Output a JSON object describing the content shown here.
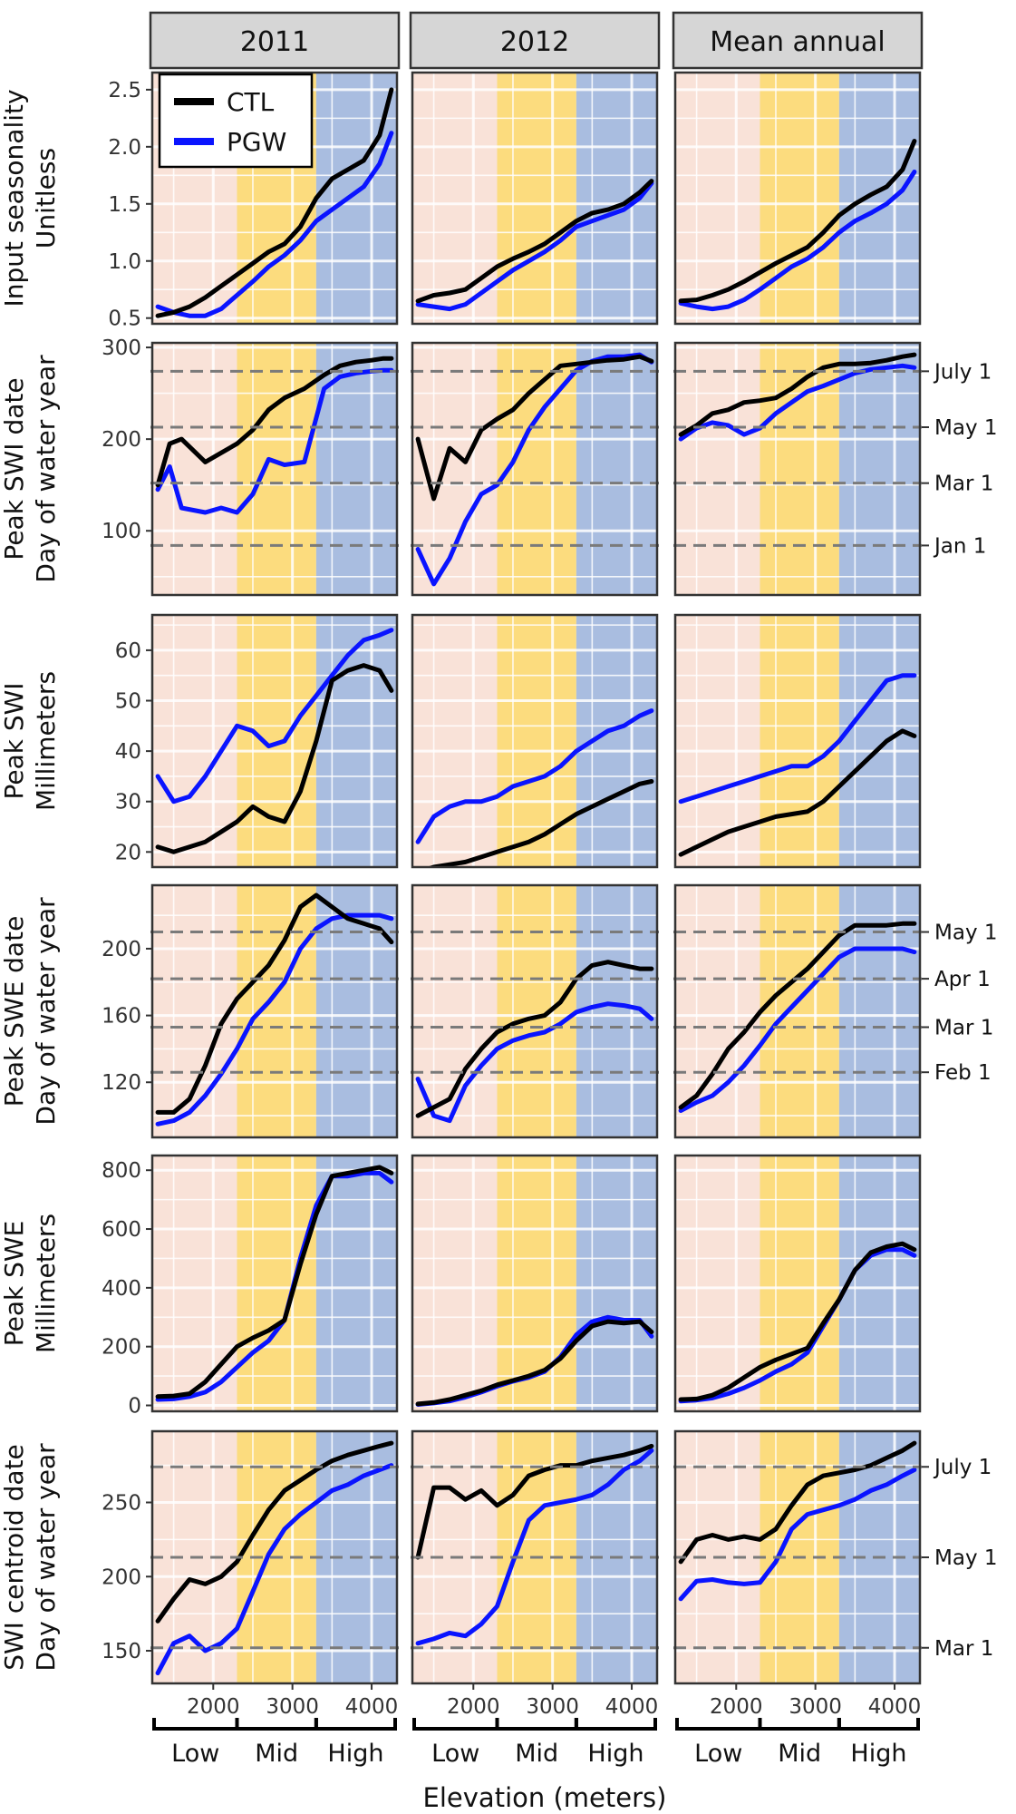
{
  "chart_data": {
    "type": "line",
    "columns": [
      "2011",
      "2012",
      "Mean annual"
    ],
    "xlabel": "Elevation (meters)",
    "x_ticks": [
      2000,
      3000,
      4000
    ],
    "x_range": [
      1230,
      4320
    ],
    "elevation_bands": [
      {
        "label": "Low",
        "from": 1230,
        "to": 2300,
        "color": "#f9e2d8"
      },
      {
        "label": "Mid",
        "from": 2300,
        "to": 3300,
        "color": "#fcdc7e"
      },
      {
        "label": "High",
        "from": 3300,
        "to": 4320,
        "color": "#a9bde0"
      }
    ],
    "legend": [
      {
        "name": "CTL",
        "color": "#000000"
      },
      {
        "name": "PGW",
        "color": "#0a14ff"
      }
    ],
    "x": [
      1300,
      1500,
      1700,
      1900,
      2100,
      2300,
      2500,
      2700,
      2900,
      3100,
      3300,
      3500,
      3700,
      3900,
      4100,
      4250
    ],
    "rows": [
      {
        "title": "Input seasonality",
        "ylabel": "Unitless",
        "ylim": [
          0.45,
          2.65
        ],
        "yticks": [
          0.5,
          1.0,
          1.5,
          2.0,
          2.5
        ],
        "ytick_labels": [
          "0.5",
          "1.0",
          "1.5",
          "2.0",
          "2.5"
        ],
        "ref_lines": [],
        "panels": [
          {
            "CTL": [
              0.52,
              0.55,
              0.6,
              0.68,
              0.78,
              0.88,
              0.98,
              1.08,
              1.15,
              1.3,
              1.55,
              1.72,
              1.8,
              1.88,
              2.1,
              2.5
            ],
            "PGW": [
              0.6,
              0.55,
              0.52,
              0.52,
              0.58,
              0.7,
              0.82,
              0.95,
              1.05,
              1.18,
              1.35,
              1.45,
              1.55,
              1.65,
              1.85,
              2.12
            ]
          },
          {
            "CTL": [
              0.65,
              0.7,
              0.72,
              0.75,
              0.85,
              0.95,
              1.02,
              1.08,
              1.15,
              1.25,
              1.35,
              1.42,
              1.45,
              1.5,
              1.6,
              1.7
            ],
            "PGW": [
              0.62,
              0.6,
              0.58,
              0.62,
              0.72,
              0.82,
              0.92,
              1.0,
              1.08,
              1.18,
              1.3,
              1.35,
              1.4,
              1.45,
              1.55,
              1.68
            ]
          },
          {
            "CTL": [
              0.65,
              0.66,
              0.7,
              0.75,
              0.82,
              0.9,
              0.98,
              1.05,
              1.12,
              1.25,
              1.4,
              1.5,
              1.58,
              1.65,
              1.8,
              2.05
            ],
            "PGW": [
              0.63,
              0.6,
              0.58,
              0.6,
              0.66,
              0.75,
              0.85,
              0.95,
              1.02,
              1.12,
              1.25,
              1.35,
              1.42,
              1.5,
              1.62,
              1.78
            ]
          }
        ]
      },
      {
        "title": "Peak SWI date",
        "ylabel": "Day of water year",
        "ylim": [
          30,
          305
        ],
        "yticks": [
          100,
          200,
          300
        ],
        "ytick_labels": [
          "100",
          "200",
          "300"
        ],
        "ref_lines": [
          {
            "value": 274,
            "label": "July 1"
          },
          {
            "value": 213,
            "label": "May 1"
          },
          {
            "value": 152,
            "label": "Mar 1"
          },
          {
            "value": 84,
            "label": "Jan 1"
          }
        ],
        "panels": [
          {
            "CTL": [
              150,
              195,
              200,
              175,
              185,
              195,
              210,
              232,
              245,
              255,
              270,
              280,
              284,
              286,
              288,
              288
            ],
            "PGW": [
              145,
              170,
              125,
              120,
              125,
              120,
              140,
              178,
              172,
              175,
              255,
              268,
              272,
              274,
              275,
              275
            ],
            "plot_x": [
              1300,
              1450,
              1600,
              1900,
              2100,
              2300,
              2500,
              2700,
              2900,
              3150,
              3400,
              3600,
              3800,
              4000,
              4150,
              4250
            ]
          },
          {
            "CTL": [
              200,
              135,
              190,
              175,
              210,
              222,
              232,
              250,
              265,
              280,
              282,
              284,
              286,
              287,
              290,
              285
            ],
            "PGW": [
              80,
              42,
              70,
              110,
              140,
              150,
              175,
              210,
              235,
              255,
              275,
              285,
              290,
              290,
              292,
              284
            ]
          },
          {
            "CTL": [
              205,
              215,
              228,
              232,
              240,
              242,
              245,
              255,
              268,
              278,
              282,
              282,
              283,
              286,
              290,
              292
            ],
            "PGW": [
              200,
              212,
              218,
              215,
              205,
              212,
              228,
              240,
              252,
              258,
              265,
              272,
              276,
              278,
              280,
              278
            ]
          }
        ]
      },
      {
        "title": "Peak SWI",
        "ylabel": "Millimeters",
        "ylim": [
          17,
          67
        ],
        "yticks": [
          20,
          30,
          40,
          50,
          60
        ],
        "ytick_labels": [
          "20",
          "30",
          "40",
          "50",
          "60"
        ],
        "ref_lines": [],
        "panels": [
          {
            "CTL": [
              21,
              20,
              21,
              22,
              24,
              26,
              29,
              27,
              26,
              32,
              42,
              54,
              56,
              57,
              56,
              52
            ],
            "PGW": [
              35,
              30,
              31,
              35,
              40,
              45,
              44,
              41,
              42,
              47,
              51,
              55,
              59,
              62,
              63,
              64
            ]
          },
          {
            "CTL": [
              16,
              17,
              17.5,
              18,
              19,
              20,
              21,
              22,
              23.5,
              25.5,
              27.5,
              29,
              30.5,
              32,
              33.5,
              34
            ],
            "PGW": [
              22,
              27,
              29,
              30,
              30,
              31,
              33,
              34,
              35,
              37,
              40,
              42,
              44,
              45,
              47,
              48
            ]
          },
          {
            "CTL": [
              19.5,
              21,
              22.5,
              24,
              25,
              26,
              27,
              27.5,
              28,
              30,
              33,
              36,
              39,
              42,
              44,
              43
            ],
            "PGW": [
              30,
              31,
              32,
              33,
              34,
              35,
              36,
              37,
              37,
              39,
              42,
              46,
              50,
              54,
              55,
              55
            ]
          }
        ]
      },
      {
        "title": "Peak SWE date",
        "ylabel": "Day of water year",
        "ylim": [
          87,
          238
        ],
        "yticks": [
          120,
          160,
          200
        ],
        "ytick_labels": [
          "120",
          "160",
          "200"
        ],
        "ref_lines": [
          {
            "value": 210,
            "label": "May 1"
          },
          {
            "value": 182,
            "label": "Apr 1"
          },
          {
            "value": 153,
            "label": "Mar 1"
          },
          {
            "value": 126,
            "label": "Feb 1"
          }
        ],
        "panels": [
          {
            "CTL": [
              102,
              102,
              110,
              130,
              155,
              170,
              180,
              190,
              205,
              225,
              232,
              225,
              218,
              215,
              212,
              204
            ],
            "PGW": [
              95,
              97,
              102,
              112,
              125,
              140,
              158,
              168,
              180,
              200,
              212,
              218,
              220,
              220,
              220,
              218
            ]
          },
          {
            "CTL": [
              100,
              105,
              110,
              128,
              140,
              150,
              155,
              158,
              160,
              168,
              182,
              190,
              192,
              190,
              188,
              188
            ],
            "PGW": [
              122,
              100,
              97,
              118,
              130,
              140,
              145,
              148,
              150,
              155,
              162,
              165,
              167,
              166,
              164,
              158
            ]
          },
          {
            "CTL": [
              105,
              112,
              125,
              140,
              150,
              162,
              172,
              180,
              188,
              198,
              208,
              214,
              214,
              214,
              215,
              215
            ],
            "PGW": [
              103,
              108,
              112,
              120,
              130,
              142,
              155,
              165,
              175,
              185,
              195,
              200,
              200,
              200,
              200,
              198
            ]
          }
        ]
      },
      {
        "title": "Peak SWE",
        "ylabel": "Millimeters",
        "ylim": [
          -20,
          850
        ],
        "yticks": [
          0,
          200,
          400,
          600,
          800
        ],
        "ytick_labels": [
          "0",
          "200",
          "400",
          "600",
          "800"
        ],
        "ref_lines": [],
        "panels": [
          {
            "CTL": [
              30,
              32,
              40,
              80,
              140,
              200,
              230,
              255,
              290,
              480,
              650,
              780,
              790,
              800,
              810,
              790
            ],
            "PGW": [
              20,
              22,
              30,
              45,
              80,
              130,
              180,
              220,
              290,
              500,
              680,
              780,
              780,
              790,
              790,
              760
            ]
          },
          {
            "CTL": [
              5,
              10,
              20,
              35,
              50,
              70,
              85,
              100,
              120,
              160,
              220,
              270,
              285,
              280,
              285,
              250
            ],
            "PGW": [
              3,
              8,
              15,
              28,
              45,
              65,
              82,
              95,
              115,
              165,
              240,
              285,
              300,
              290,
              290,
              235
            ]
          },
          {
            "CTL": [
              20,
              22,
              35,
              60,
              95,
              130,
              155,
              175,
              195,
              280,
              360,
              460,
              520,
              540,
              550,
              530
            ],
            "PGW": [
              15,
              18,
              25,
              40,
              60,
              85,
              115,
              140,
              180,
              270,
              360,
              460,
              510,
              530,
              530,
              510
            ]
          }
        ]
      },
      {
        "title": "SWI centroid date",
        "ylabel": "Day of water year",
        "ylim": [
          128,
          298
        ],
        "yticks": [
          150,
          200,
          250
        ],
        "ytick_labels": [
          "150",
          "200",
          "250"
        ],
        "ref_lines": [
          {
            "value": 274,
            "label": "July 1"
          },
          {
            "value": 213,
            "label": "May 1"
          },
          {
            "value": 152,
            "label": "Mar 1"
          }
        ],
        "panels": [
          {
            "CTL": [
              170,
              185,
              198,
              195,
              200,
              210,
              228,
              245,
              258,
              265,
              272,
              278,
              282,
              285,
              288,
              290
            ],
            "PGW": [
              135,
              155,
              160,
              150,
              155,
              165,
              190,
              215,
              232,
              242,
              250,
              258,
              262,
              268,
              272,
              275
            ]
          },
          {
            "CTL": [
              213,
              260,
              260,
              252,
              258,
              248,
              255,
              268,
              272,
              275,
              275,
              278,
              280,
              282,
              285,
              288
            ],
            "PGW": [
              155,
              158,
              162,
              160,
              168,
              180,
              210,
              238,
              248,
              250,
              252,
              255,
              262,
              272,
              278,
              285
            ]
          },
          {
            "CTL": [
              210,
              225,
              228,
              225,
              227,
              225,
              232,
              248,
              262,
              268,
              270,
              272,
              275,
              280,
              285,
              290
            ],
            "PGW": [
              185,
              197,
              198,
              196,
              195,
              196,
              210,
              232,
              242,
              245,
              248,
              252,
              258,
              262,
              268,
              272
            ]
          }
        ]
      }
    ]
  }
}
